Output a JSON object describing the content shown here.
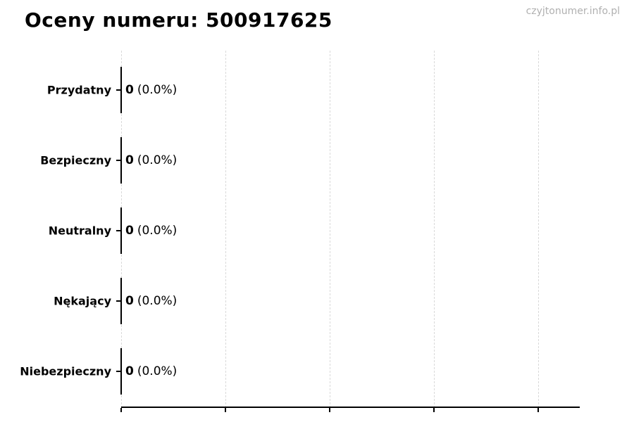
{
  "header": {
    "title": "Oceny numeru: 500917625",
    "watermark": "czyjtonumer.info.pl"
  },
  "chart": {
    "rows": [
      {
        "label": "Przydatny",
        "value": "0",
        "pct": "(0.0%)"
      },
      {
        "label": "Bezpieczny",
        "value": "0",
        "pct": "(0.0%)"
      },
      {
        "label": "Neutralny",
        "value": "0",
        "pct": "(0.0%)"
      },
      {
        "label": "Nękający",
        "value": "0",
        "pct": "(0.0%)"
      },
      {
        "label": "Niebezpieczny",
        "value": "0",
        "pct": "(0.0%)"
      }
    ]
  },
  "chart_data": {
    "type": "bar",
    "orientation": "horizontal",
    "title": "Oceny numeru: 500917625",
    "categories": [
      "Przydatny",
      "Bezpieczny",
      "Neutralny",
      "Nękający",
      "Niebezpieczny"
    ],
    "values": [
      0,
      0,
      0,
      0,
      0
    ],
    "value_labels": [
      "0 (0.0%)",
      "0 (0.0%)",
      "0 (0.0%)",
      "0 (0.0%)",
      "0 (0.0%)"
    ],
    "xlabel": "",
    "ylabel": "",
    "xlim": [
      0,
      1
    ],
    "grid": "vertical-dashed",
    "legend": "none",
    "bar_edge_color": "#000000",
    "annotations": [
      "czyjtonumer.info.pl"
    ]
  },
  "colors": {
    "background": "#ffffff",
    "text": "#000000",
    "grid": "#d9d9d9",
    "axis": "#000000",
    "watermark": "#b0b0b0"
  }
}
